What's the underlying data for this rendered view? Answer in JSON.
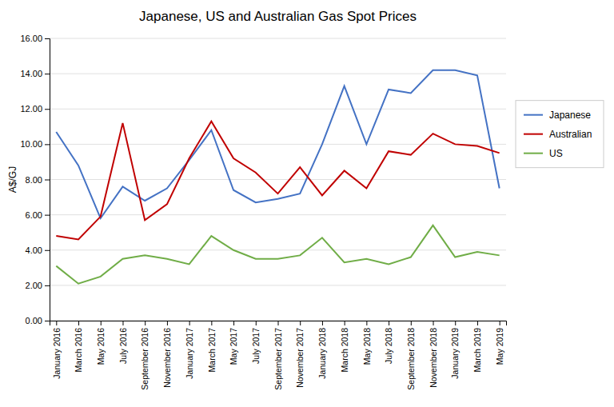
{
  "chart_data": {
    "type": "line",
    "title": "Japanese, US and Australian Gas Spot Prices",
    "ylabel": "A$/GJ",
    "categories": [
      "January 2016",
      "March 2016",
      "May 2016",
      "July 2016",
      "September 2016",
      "November 2016",
      "January 2017",
      "March 2017",
      "May 2017",
      "July 2017",
      "September 2017",
      "November 2017",
      "January 2018",
      "March 2018",
      "May 2018",
      "July 2018",
      "September 2018",
      "November 2018",
      "January 2019",
      "March 2019",
      "May 2019"
    ],
    "series": [
      {
        "name": "Japanese",
        "color": "#4472C4",
        "values": [
          10.7,
          8.8,
          5.8,
          7.6,
          6.8,
          7.5,
          9.1,
          10.8,
          7.4,
          6.7,
          6.9,
          7.2,
          10.0,
          13.3,
          10.0,
          13.1,
          12.9,
          14.2,
          14.2,
          13.9,
          7.5
        ]
      },
      {
        "name": "Australian",
        "color": "#C00000",
        "values": [
          4.8,
          4.6,
          5.9,
          11.2,
          5.7,
          6.6,
          9.2,
          11.3,
          9.2,
          8.4,
          7.2,
          8.7,
          7.1,
          8.5,
          7.5,
          9.6,
          9.4,
          10.6,
          10.0,
          9.9,
          9.5
        ]
      },
      {
        "name": "US",
        "color": "#70AD47",
        "values": [
          3.1,
          2.1,
          2.5,
          3.5,
          3.7,
          3.5,
          3.2,
          4.8,
          4.0,
          3.5,
          3.5,
          3.7,
          4.7,
          3.3,
          3.5,
          3.2,
          3.6,
          5.4,
          3.6,
          3.9,
          3.7
        ]
      }
    ],
    "ylim": [
      0,
      16
    ],
    "yticks": [
      {
        "value": 0.0,
        "label": "0.00"
      },
      {
        "value": 2.0,
        "label": "2.00"
      },
      {
        "value": 4.0,
        "label": "4.00"
      },
      {
        "value": 6.0,
        "label": "6.00"
      },
      {
        "value": 8.0,
        "label": "8.00"
      },
      {
        "value": 10.0,
        "label": "10.00"
      },
      {
        "value": 12.0,
        "label": "12.00"
      },
      {
        "value": 14.0,
        "label": "14.00"
      },
      {
        "value": 16.0,
        "label": "16.00"
      }
    ],
    "grid": true,
    "legend": "right"
  }
}
